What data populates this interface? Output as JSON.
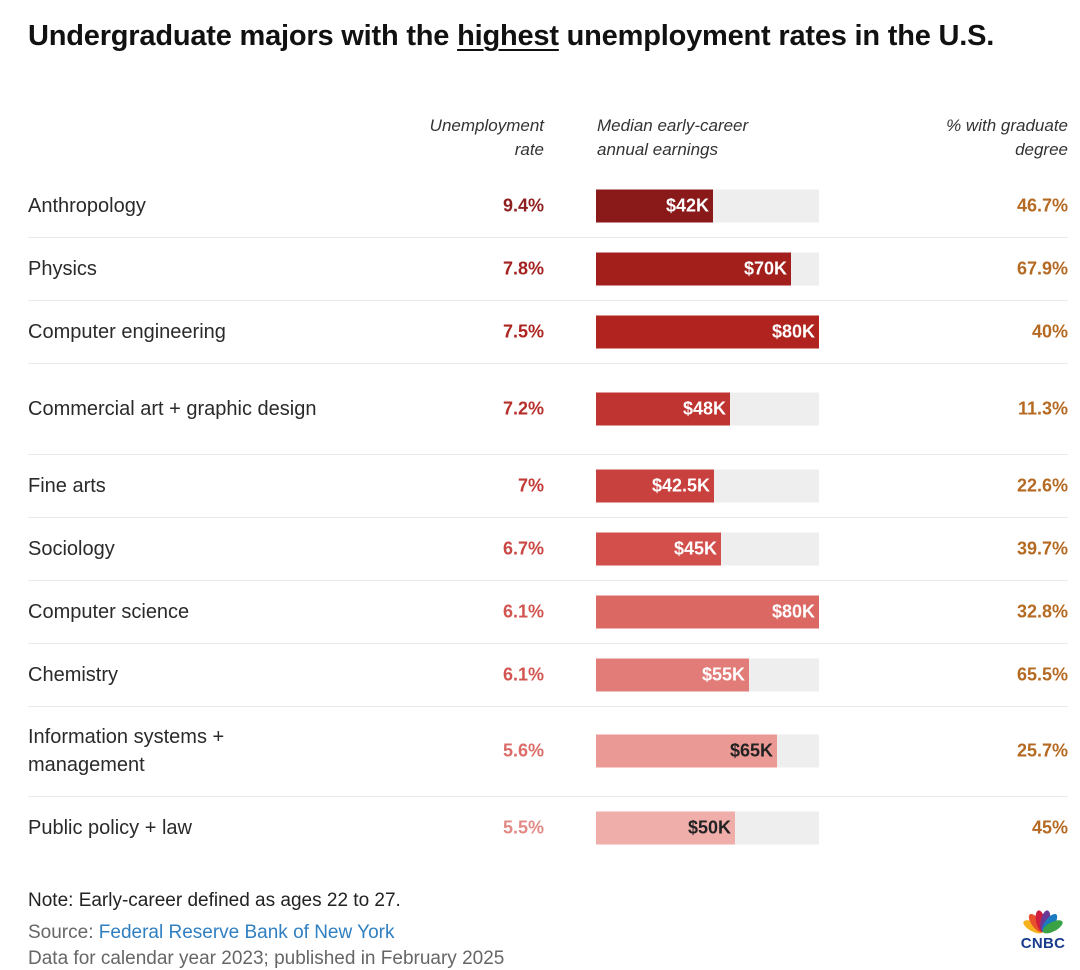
{
  "title": {
    "before": "Undergraduate majors with the ",
    "underlined": "highest",
    "after": " unemployment rates in the U.S."
  },
  "headers": {
    "unemployment": [
      "Unemployment",
      "rate"
    ],
    "earnings": [
      "Median early-career",
      "annual earnings"
    ],
    "graduate": [
      "% with graduate",
      "degree"
    ]
  },
  "chart_data": {
    "type": "table",
    "columns": [
      "Unemployment rate",
      "Median early-career annual earnings",
      "% with graduate degree"
    ],
    "earnings_axis_max": 80,
    "rows": [
      {
        "major": "Anthropology",
        "unemployment_rate": "9.4%",
        "earnings_label": "$42K",
        "earnings_k": 42,
        "grad_degree": "46.7%",
        "bar_color": "#8a1a1a",
        "rate_color": "#8f1f1f",
        "label_color": "#ffffff"
      },
      {
        "major": "Physics",
        "unemployment_rate": "7.8%",
        "earnings_label": "$70K",
        "earnings_k": 70,
        "grad_degree": "67.9%",
        "bar_color": "#a21f1c",
        "rate_color": "#a3221f",
        "label_color": "#ffffff"
      },
      {
        "major": "Computer engineering",
        "unemployment_rate": "7.5%",
        "earnings_label": "$80K",
        "earnings_k": 80,
        "grad_degree": "40%",
        "bar_color": "#b0231e",
        "rate_color": "#ad2521",
        "label_color": "#ffffff"
      },
      {
        "major": "Commercial art + graphic design",
        "unemployment_rate": "7.2%",
        "earnings_label": "$48K",
        "earnings_k": 48,
        "grad_degree": "11.3%",
        "bar_color": "#bf3330",
        "rate_color": "#b72e2a",
        "label_color": "#ffffff"
      },
      {
        "major": "Fine arts",
        "unemployment_rate": "7%",
        "earnings_label": "$42.5K",
        "earnings_k": 42.5,
        "grad_degree": "22.6%",
        "bar_color": "#c9413e",
        "rate_color": "#c13a36",
        "label_color": "#ffffff"
      },
      {
        "major": "Sociology",
        "unemployment_rate": "6.7%",
        "earnings_label": "$45K",
        "earnings_k": 45,
        "grad_degree": "39.7%",
        "bar_color": "#d24f4b",
        "rate_color": "#c94642",
        "label_color": "#ffffff"
      },
      {
        "major": "Computer science",
        "unemployment_rate": "6.1%",
        "earnings_label": "$80K",
        "earnings_k": 80,
        "grad_degree": "32.8%",
        "bar_color": "#dc6864",
        "rate_color": "#d25550",
        "label_color": "#ffffff"
      },
      {
        "major": "Chemistry",
        "unemployment_rate": "6.1%",
        "earnings_label": "$55K",
        "earnings_k": 55,
        "grad_degree": "65.5%",
        "bar_color": "#e27c78",
        "rate_color": "#d25550",
        "label_color": "#ffffff"
      },
      {
        "major": "Information systems + management",
        "unemployment_rate": "5.6%",
        "earnings_label": "$65K",
        "earnings_k": 65,
        "grad_degree": "25.7%",
        "bar_color": "#eb9995",
        "rate_color": "#db6c67",
        "label_color": "#222222"
      },
      {
        "major": "Public policy + law",
        "unemployment_rate": "5.5%",
        "earnings_label": "$50K",
        "earnings_k": 50,
        "grad_degree": "45%",
        "bar_color": "#f0aeab",
        "rate_color": "#e28a86",
        "label_color": "#222222"
      }
    ],
    "grad_color": "#b56a23"
  },
  "footer": {
    "note": "Note: Early-career defined as ages 22 to 27.",
    "source_prefix": "Source: ",
    "source_link": "Federal Reserve Bank of New York",
    "data_line": "Data for calendar year 2023; published in February 2025"
  },
  "logo": {
    "text": "CNBC",
    "icon": "peacock-icon",
    "feather_colors": [
      "#f6b21d",
      "#e8512b",
      "#cf1e3d",
      "#6b3a96",
      "#1a7bc1",
      "#3aa245"
    ]
  }
}
